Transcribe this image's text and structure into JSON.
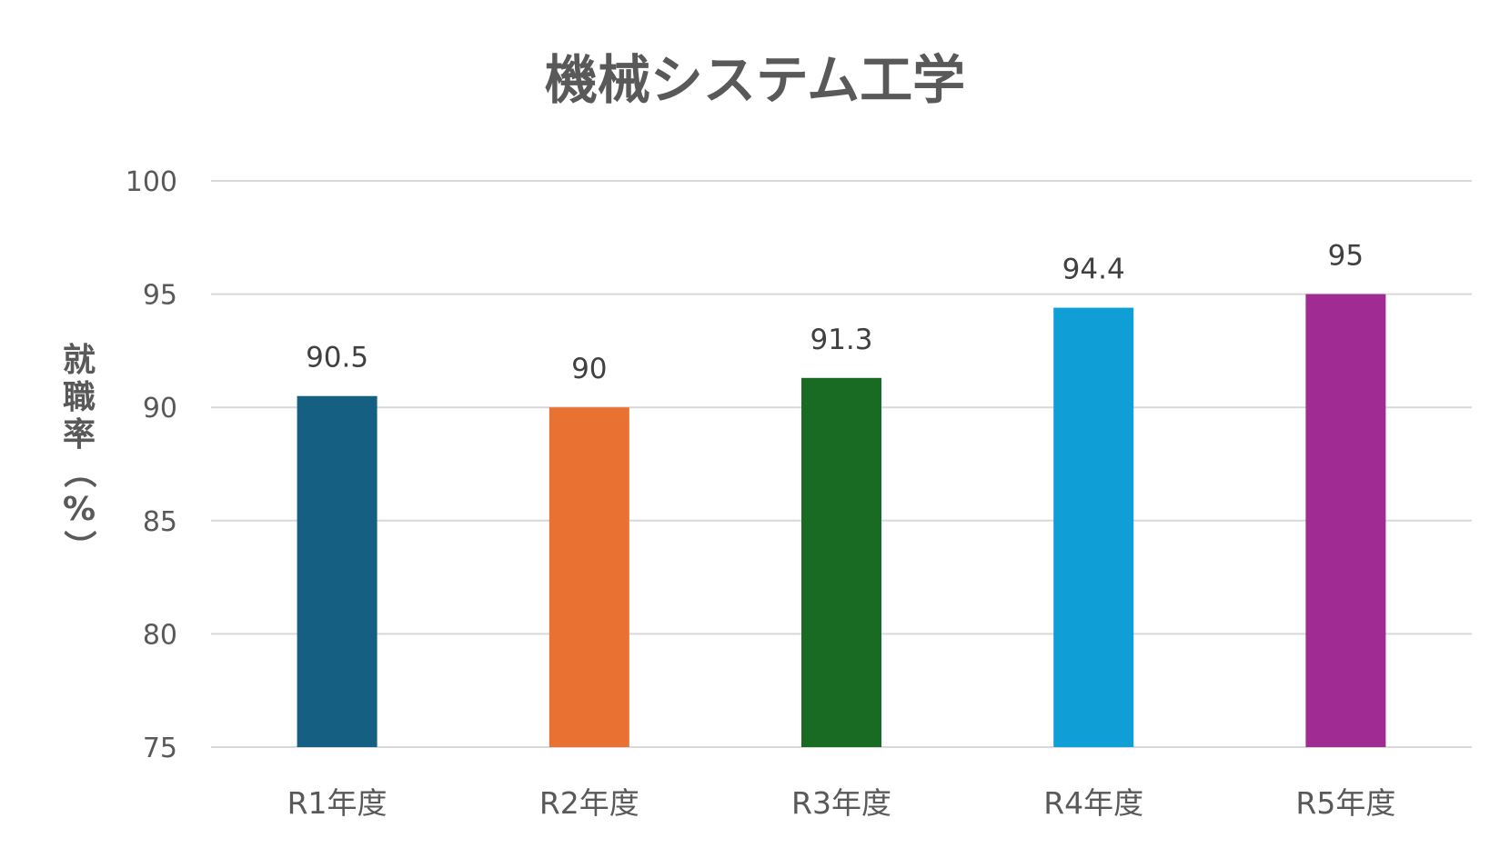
{
  "chart_data": {
    "type": "bar",
    "title": "機械システム工学",
    "xlabel": "",
    "ylabel": "就職率（%）",
    "categories": [
      "R1年度",
      "R2年度",
      "R3年度",
      "R4年度",
      "R5年度"
    ],
    "values": [
      90.5,
      90,
      91.3,
      94.4,
      95
    ],
    "data_labels": [
      "90.5",
      "90",
      "91.3",
      "94.4",
      "95"
    ],
    "ylim": [
      75,
      100
    ],
    "yticks": [
      75,
      80,
      85,
      90,
      95,
      100
    ],
    "ytick_labels": [
      "75",
      "80",
      "85",
      "90",
      "95",
      "100"
    ],
    "bar_colors": [
      "#155f82",
      "#e97132",
      "#196b24",
      "#0f9ed5",
      "#a02b93"
    ],
    "grid": true,
    "legend": "none"
  }
}
